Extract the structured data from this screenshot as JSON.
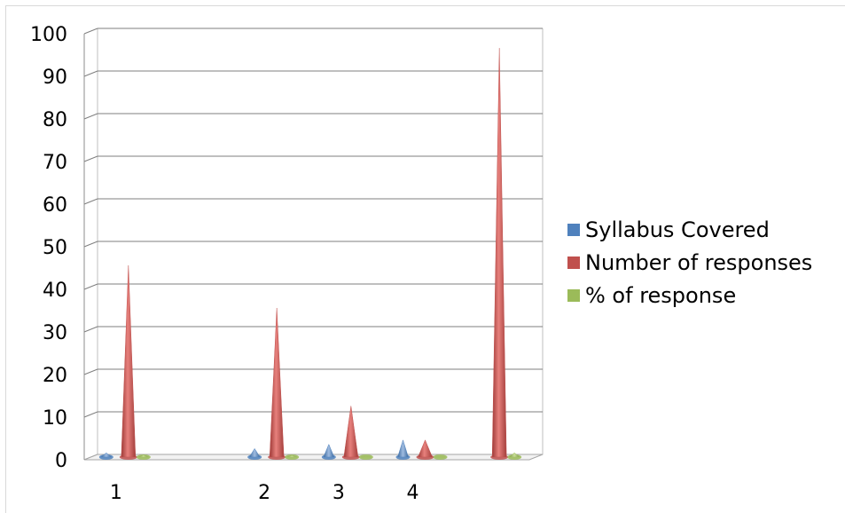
{
  "chart_data": {
    "type": "bar",
    "subtype": "3d-cone",
    "categories": [
      "1",
      "",
      "2",
      "3",
      "4",
      ""
    ],
    "ylim": [
      0,
      100
    ],
    "yticks": [
      "0",
      "10",
      "20",
      "30",
      "40",
      "50",
      "60",
      "70",
      "80",
      "90",
      "100"
    ],
    "grid": true,
    "legend_position": "right",
    "series": [
      {
        "name": "Syllabus Covered",
        "color": "#4f81bd",
        "values": [
          1,
          null,
          2,
          3,
          4,
          null
        ]
      },
      {
        "name": "Number of responses",
        "color": "#c0504d",
        "values": [
          45,
          null,
          35,
          12,
          4,
          96
        ]
      },
      {
        "name": "% of response",
        "color": "#9bbb59",
        "values": [
          0.5,
          null,
          0.4,
          0.1,
          0.05,
          1
        ]
      }
    ]
  }
}
